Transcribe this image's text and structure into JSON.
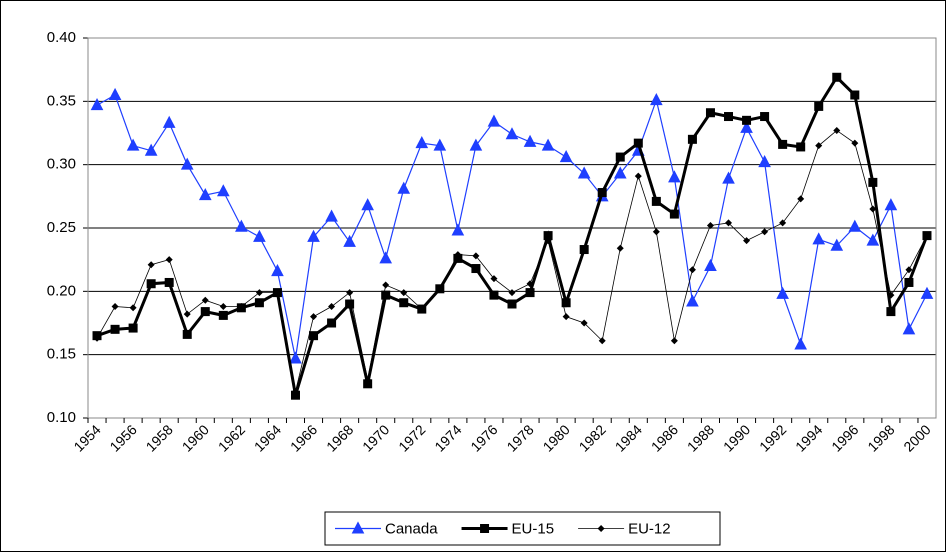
{
  "chart_data": {
    "type": "line",
    "categories": [
      "1954",
      null,
      "1956",
      null,
      "1958",
      null,
      "1960",
      null,
      "1962",
      null,
      "1964",
      null,
      "1966",
      null,
      "1968",
      null,
      "1970",
      null,
      "1972",
      null,
      "1974",
      null,
      "1976",
      null,
      "1978",
      null,
      "1980",
      null,
      "1982",
      null,
      "1984",
      null,
      "1986",
      null,
      "1988",
      null,
      "1990",
      null,
      "1992",
      null,
      "1994",
      null,
      "1996",
      null,
      "1998",
      null,
      "2000"
    ],
    "series": [
      {
        "name": "Canada",
        "color": "#1f3fff",
        "marker": "triangle",
        "values": [
          0.347,
          0.355,
          0.315,
          0.311,
          0.333,
          0.3,
          0.276,
          0.279,
          0.251,
          0.243,
          0.216,
          0.147,
          0.243,
          0.259,
          0.239,
          0.268,
          0.226,
          0.281,
          0.317,
          0.315,
          0.248,
          0.315,
          0.334,
          0.324,
          0.318,
          0.315,
          0.306,
          0.293,
          0.275,
          0.293,
          0.311,
          0.351,
          0.29,
          0.192,
          0.22,
          0.289,
          0.329,
          0.302,
          0.198,
          0.158,
          0.241,
          0.236,
          0.251,
          0.24,
          0.268,
          0.17,
          0.198
        ]
      },
      {
        "name": "EU-15",
        "color": "#000000",
        "marker": "square",
        "values": [
          0.165,
          0.17,
          0.171,
          0.206,
          0.207,
          0.166,
          0.184,
          0.181,
          0.187,
          0.191,
          0.199,
          0.118,
          0.165,
          0.175,
          0.19,
          0.127,
          0.197,
          0.191,
          0.186,
          0.202,
          0.226,
          0.218,
          0.197,
          0.19,
          0.199,
          0.244,
          0.191,
          0.233,
          0.278,
          0.306,
          0.317,
          0.271,
          0.261,
          0.32,
          0.341,
          0.338,
          0.335,
          0.338,
          0.316,
          0.314,
          0.346,
          0.369,
          0.355,
          0.286,
          0.184,
          0.207,
          0.244
        ]
      },
      {
        "name": "EU-12",
        "color": "#000000",
        "marker": "diamond",
        "values": [
          0.163,
          0.188,
          0.187,
          0.221,
          0.225,
          0.182,
          0.193,
          0.188,
          0.188,
          0.199,
          0.199,
          0.121,
          0.18,
          0.188,
          0.199,
          0.13,
          0.205,
          0.199,
          0.186,
          0.202,
          0.229,
          0.228,
          0.21,
          0.199,
          0.206,
          0.24,
          0.18,
          0.175,
          0.161,
          0.234,
          0.291,
          0.247,
          0.161,
          0.217,
          0.252,
          0.254,
          0.24,
          0.247,
          0.254,
          0.273,
          0.315,
          0.327,
          0.317,
          0.265,
          0.197,
          0.217,
          0.244
        ]
      }
    ],
    "ylim": [
      0.1,
      0.4
    ],
    "yticks": [
      {
        "value": 0.1,
        "label": "0.10"
      },
      0.15,
      {
        "value": 0.2,
        "label": "0.20"
      },
      0.25,
      {
        "value": 0.3,
        "label": "0.30"
      },
      0.35,
      {
        "value": 0.4,
        "label": "0.40"
      }
    ],
    "grid": true,
    "legend": "bottom"
  }
}
